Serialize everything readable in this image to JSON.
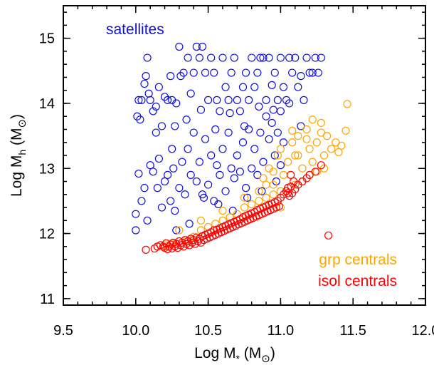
{
  "chart_data": {
    "type": "scatter",
    "title": "",
    "xlabel": "Log M* (M⊙)",
    "ylabel": "Log Mh (M⊙)",
    "xlim": [
      9.5,
      12.0
    ],
    "ylim": [
      10.9,
      15.5
    ],
    "x_ticks": [
      "9.5",
      "10.0",
      "10.5",
      "11.0",
      "11.5",
      "12.0"
    ],
    "y_ticks": [
      "11",
      "12",
      "13",
      "14",
      "15"
    ],
    "grid": false,
    "legend": "text labels: top-left (satellites), bottom-right (grp centrals, isol centrals)",
    "marker": "open-circle",
    "series": [
      {
        "name": "satellites",
        "color": "#1010dd",
        "points": [
          [
            10.01,
            13.8
          ],
          [
            10.02,
            14.05
          ],
          [
            10.04,
            14.05
          ],
          [
            10.06,
            14.3
          ],
          [
            10.07,
            14.42
          ],
          [
            10.08,
            14.7
          ],
          [
            10.03,
            13.75
          ],
          [
            10.09,
            14.15
          ],
          [
            10.1,
            14.05
          ],
          [
            10.12,
            13.88
          ],
          [
            10.14,
            13.95
          ],
          [
            10.16,
            14.25
          ],
          [
            10.18,
            13.65
          ],
          [
            10.2,
            14.1
          ],
          [
            10.22,
            14.05
          ],
          [
            10.24,
            14.42
          ],
          [
            10.25,
            14.05
          ],
          [
            10.27,
            13.65
          ],
          [
            10.28,
            14.0
          ],
          [
            10.3,
            14.87
          ],
          [
            10.31,
            14.42
          ],
          [
            10.33,
            14.47
          ],
          [
            10.36,
            14.7
          ],
          [
            10.38,
            14.15
          ],
          [
            10.4,
            14.47
          ],
          [
            10.42,
            14.87
          ],
          [
            10.44,
            14.7
          ],
          [
            10.46,
            14.87
          ],
          [
            10.48,
            14.47
          ],
          [
            10.5,
            14.05
          ],
          [
            10.52,
            14.7
          ],
          [
            10.54,
            14.47
          ],
          [
            10.56,
            14.05
          ],
          [
            10.58,
            13.88
          ],
          [
            10.6,
            14.7
          ],
          [
            10.62,
            14.25
          ],
          [
            10.64,
            14.05
          ],
          [
            10.66,
            14.47
          ],
          [
            10.68,
            14.7
          ],
          [
            10.7,
            14.05
          ],
          [
            10.72,
            13.88
          ],
          [
            10.74,
            14.25
          ],
          [
            10.76,
            14.47
          ],
          [
            10.78,
            14.05
          ],
          [
            10.8,
            14.7
          ],
          [
            10.82,
            14.25
          ],
          [
            10.84,
            14.47
          ],
          [
            10.86,
            14.7
          ],
          [
            10.88,
            14.7
          ],
          [
            10.9,
            14.05
          ],
          [
            10.92,
            14.7
          ],
          [
            10.94,
            14.28
          ],
          [
            10.96,
            14.47
          ],
          [
            10.98,
            14.05
          ],
          [
            11.0,
            14.7
          ],
          [
            11.02,
            14.25
          ],
          [
            11.04,
            14.05
          ],
          [
            11.06,
            14.7
          ],
          [
            11.08,
            14.47
          ],
          [
            11.1,
            14.7
          ],
          [
            11.12,
            14.25
          ],
          [
            11.14,
            14.42
          ],
          [
            11.16,
            14.05
          ],
          [
            11.18,
            14.7
          ],
          [
            11.2,
            14.47
          ],
          [
            11.22,
            14.47
          ],
          [
            11.24,
            14.7
          ],
          [
            11.26,
            14.47
          ],
          [
            11.28,
            14.7
          ],
          [
            11.0,
            13.88
          ],
          [
            11.06,
            14.0
          ],
          [
            11.14,
            13.65
          ],
          [
            10.0,
            12.3
          ],
          [
            10.0,
            12.05
          ],
          [
            10.02,
            12.92
          ],
          [
            10.04,
            12.5
          ],
          [
            10.06,
            12.7
          ],
          [
            10.08,
            12.2
          ],
          [
            10.1,
            13.05
          ],
          [
            10.12,
            12.95
          ],
          [
            10.14,
            13.55
          ],
          [
            10.16,
            13.15
          ],
          [
            10.18,
            12.4
          ],
          [
            10.2,
            12.8
          ],
          [
            10.22,
            12.9
          ],
          [
            10.24,
            12.5
          ],
          [
            10.26,
            13.0
          ],
          [
            10.28,
            12.05
          ],
          [
            10.3,
            12.7
          ],
          [
            10.32,
            13.1
          ],
          [
            10.34,
            12.6
          ],
          [
            10.36,
            13.3
          ],
          [
            10.38,
            12.9
          ],
          [
            10.4,
            13.55
          ],
          [
            10.42,
            12.8
          ],
          [
            10.44,
            13.1
          ],
          [
            10.46,
            12.6
          ],
          [
            10.48,
            13.45
          ],
          [
            10.5,
            12.75
          ],
          [
            10.52,
            13.2
          ],
          [
            10.54,
            12.5
          ],
          [
            10.56,
            13.05
          ],
          [
            10.58,
            12.9
          ],
          [
            10.6,
            13.3
          ],
          [
            10.62,
            12.65
          ],
          [
            10.64,
            13.55
          ],
          [
            10.66,
            13.0
          ],
          [
            10.68,
            12.85
          ],
          [
            10.7,
            13.2
          ],
          [
            10.72,
            12.95
          ],
          [
            10.74,
            13.4
          ],
          [
            10.76,
            12.7
          ],
          [
            10.78,
            13.6
          ],
          [
            10.8,
            13.0
          ],
          [
            10.82,
            13.3
          ],
          [
            10.84,
            12.9
          ],
          [
            10.86,
            13.55
          ],
          [
            10.88,
            13.1
          ],
          [
            10.9,
            13.8
          ],
          [
            10.92,
            13.45
          ],
          [
            10.94,
            13.7
          ],
          [
            10.96,
            13.2
          ],
          [
            10.98,
            13.55
          ],
          [
            10.25,
            13.3
          ],
          [
            10.35,
            13.75
          ],
          [
            10.45,
            13.9
          ],
          [
            10.55,
            13.6
          ],
          [
            10.65,
            13.85
          ],
          [
            10.75,
            13.65
          ],
          [
            10.85,
            13.95
          ],
          [
            10.95,
            13.9
          ],
          [
            10.15,
            12.7
          ],
          [
            10.27,
            12.35
          ],
          [
            10.37,
            12.15
          ],
          [
            10.47,
            12.55
          ],
          [
            10.57,
            12.45
          ],
          [
            10.67,
            12.35
          ],
          [
            10.77,
            12.55
          ],
          [
            10.87,
            12.65
          ],
          [
            10.97,
            12.8
          ],
          [
            11.0,
            13.05
          ],
          [
            11.02,
            13.4
          ]
        ]
      },
      {
        "name": "grp centrals",
        "color": "#ffa500",
        "points": [
          [
            10.85,
            12.65
          ],
          [
            10.88,
            12.85
          ],
          [
            10.9,
            12.75
          ],
          [
            10.92,
            13.0
          ],
          [
            10.95,
            12.95
          ],
          [
            10.98,
            13.2
          ],
          [
            11.0,
            13.3
          ],
          [
            11.02,
            12.9
          ],
          [
            11.05,
            13.1
          ],
          [
            11.08,
            13.4
          ],
          [
            11.1,
            13.2
          ],
          [
            11.12,
            13.5
          ],
          [
            11.15,
            13.0
          ],
          [
            11.18,
            13.6
          ],
          [
            11.2,
            13.3
          ],
          [
            11.22,
            13.1
          ],
          [
            11.25,
            13.4
          ],
          [
            11.28,
            13.7
          ],
          [
            11.3,
            13.2
          ],
          [
            11.32,
            13.5
          ],
          [
            11.35,
            13.3
          ],
          [
            11.38,
            13.4
          ],
          [
            11.4,
            13.25
          ],
          [
            11.42,
            13.35
          ],
          [
            11.45,
            13.58
          ],
          [
            11.46,
            13.99
          ],
          [
            11.3,
            13.0
          ],
          [
            11.25,
            12.95
          ],
          [
            11.2,
            12.9
          ],
          [
            11.15,
            12.8
          ],
          [
            11.1,
            12.75
          ],
          [
            11.05,
            12.7
          ],
          [
            11.0,
            12.65
          ],
          [
            10.95,
            12.6
          ],
          [
            10.9,
            12.55
          ],
          [
            10.85,
            12.5
          ],
          [
            10.8,
            12.45
          ],
          [
            10.75,
            12.4
          ],
          [
            10.7,
            12.3
          ],
          [
            10.65,
            12.25
          ],
          [
            10.6,
            12.2
          ],
          [
            10.55,
            12.15
          ],
          [
            10.5,
            12.1
          ],
          [
            10.45,
            12.05
          ],
          [
            10.4,
            11.95
          ],
          [
            10.35,
            11.9
          ],
          [
            10.3,
            11.88
          ],
          [
            10.25,
            11.85
          ],
          [
            10.2,
            11.82
          ],
          [
            10.15,
            11.8
          ],
          [
            10.3,
            12.05
          ],
          [
            10.45,
            12.2
          ],
          [
            10.6,
            12.35
          ],
          [
            10.75,
            12.55
          ],
          [
            10.95,
            12.75
          ],
          [
            11.12,
            13.2
          ],
          [
            11.18,
            13.45
          ],
          [
            11.22,
            13.75
          ],
          [
            11.28,
            13.55
          ],
          [
            11.08,
            13.58
          ],
          [
            11.0,
            12.4
          ]
        ]
      },
      {
        "name": "isol centrals",
        "color": "#ff0000",
        "points": [
          [
            10.07,
            11.75
          ],
          [
            10.13,
            11.77
          ],
          [
            10.15,
            11.8
          ],
          [
            10.17,
            11.82
          ],
          [
            10.19,
            11.8
          ],
          [
            10.2,
            11.78
          ],
          [
            10.21,
            11.85
          ],
          [
            10.22,
            11.76
          ],
          [
            10.23,
            11.8
          ],
          [
            10.24,
            11.83
          ],
          [
            10.25,
            11.77
          ],
          [
            10.26,
            11.86
          ],
          [
            10.27,
            11.8
          ],
          [
            10.28,
            11.84
          ],
          [
            10.29,
            11.78
          ],
          [
            10.3,
            11.88
          ],
          [
            10.31,
            11.82
          ],
          [
            10.32,
            11.86
          ],
          [
            10.33,
            11.8
          ],
          [
            10.34,
            11.9
          ],
          [
            10.35,
            11.84
          ],
          [
            10.36,
            11.88
          ],
          [
            10.37,
            11.82
          ],
          [
            10.38,
            11.92
          ],
          [
            10.39,
            11.86
          ],
          [
            10.4,
            11.9
          ],
          [
            10.41,
            11.84
          ],
          [
            10.42,
            11.94
          ],
          [
            10.43,
            11.88
          ],
          [
            10.44,
            11.92
          ],
          [
            10.45,
            11.86
          ],
          [
            10.46,
            11.96
          ],
          [
            10.47,
            11.9
          ],
          [
            10.48,
            11.98
          ],
          [
            10.49,
            11.92
          ],
          [
            10.5,
            12.0
          ],
          [
            10.51,
            11.94
          ],
          [
            10.52,
            12.02
          ],
          [
            10.53,
            11.96
          ],
          [
            10.54,
            12.05
          ],
          [
            10.55,
            11.98
          ],
          [
            10.56,
            12.06
          ],
          [
            10.57,
            12.0
          ],
          [
            10.58,
            12.08
          ],
          [
            10.59,
            12.02
          ],
          [
            10.6,
            12.1
          ],
          [
            10.61,
            12.04
          ],
          [
            10.62,
            12.12
          ],
          [
            10.63,
            12.06
          ],
          [
            10.64,
            12.14
          ],
          [
            10.65,
            12.08
          ],
          [
            10.66,
            12.16
          ],
          [
            10.67,
            12.1
          ],
          [
            10.68,
            12.18
          ],
          [
            10.69,
            12.12
          ],
          [
            10.7,
            12.2
          ],
          [
            10.71,
            12.14
          ],
          [
            10.72,
            12.22
          ],
          [
            10.73,
            12.16
          ],
          [
            10.74,
            12.25
          ],
          [
            10.75,
            12.18
          ],
          [
            10.76,
            12.27
          ],
          [
            10.77,
            12.2
          ],
          [
            10.78,
            12.29
          ],
          [
            10.79,
            12.22
          ],
          [
            10.8,
            12.31
          ],
          [
            10.81,
            12.24
          ],
          [
            10.82,
            12.33
          ],
          [
            10.83,
            12.26
          ],
          [
            10.84,
            12.36
          ],
          [
            10.85,
            12.28
          ],
          [
            10.86,
            12.38
          ],
          [
            10.87,
            12.3
          ],
          [
            10.88,
            12.4
          ],
          [
            10.89,
            12.32
          ],
          [
            10.9,
            12.42
          ],
          [
            10.91,
            12.34
          ],
          [
            10.92,
            12.44
          ],
          [
            10.93,
            12.36
          ],
          [
            10.94,
            12.46
          ],
          [
            10.95,
            12.38
          ],
          [
            10.96,
            12.48
          ],
          [
            10.97,
            12.4
          ],
          [
            10.98,
            12.5
          ],
          [
            10.99,
            12.42
          ],
          [
            11.0,
            12.55
          ],
          [
            11.02,
            12.6
          ],
          [
            11.04,
            12.65
          ],
          [
            11.05,
            12.7
          ],
          [
            11.06,
            12.58
          ],
          [
            11.07,
            12.72
          ],
          [
            11.08,
            12.62
          ],
          [
            11.09,
            12.8
          ],
          [
            11.1,
            12.68
          ],
          [
            11.12,
            12.75
          ],
          [
            11.15,
            12.8
          ],
          [
            11.18,
            12.85
          ],
          [
            11.2,
            12.9
          ],
          [
            11.24,
            12.95
          ],
          [
            11.28,
            13.05
          ],
          [
            11.33,
            11.97
          ],
          [
            11.05,
            12.62
          ],
          [
            11.07,
            12.9
          ]
        ]
      }
    ],
    "annotations": [
      "satellites",
      "grp centrals",
      "isol centrals"
    ]
  },
  "labels": {
    "satellites": "satellites",
    "grp_centrals": "grp centrals",
    "isol_centrals": "isol centrals"
  }
}
